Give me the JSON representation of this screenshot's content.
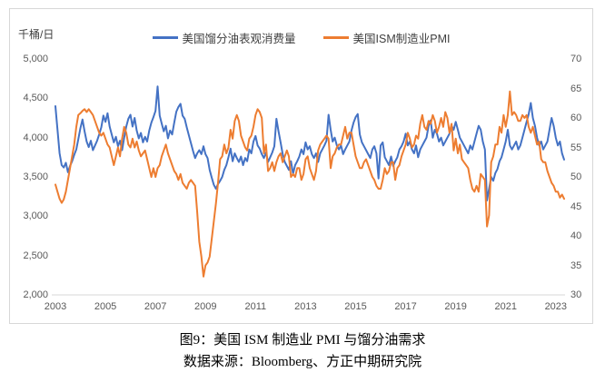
{
  "caption": {
    "title": "图9：美国 ISM 制造业 PMI 与馏分油需求",
    "source": "数据来源：Bloomberg、方正中期研究院"
  },
  "chart_data": {
    "type": "line",
    "title": "图9：美国 ISM 制造业 PMI 与馏分油需求",
    "unit_label": "千桶/日",
    "grid": "off",
    "legend_position": "top-center",
    "x_axis": {
      "start_year": 2003,
      "end": "2023-05",
      "frequency": "monthly",
      "tick_labels": [
        "2003",
        "2005",
        "2007",
        "2009",
        "2011",
        "2013",
        "2015",
        "2017",
        "2019",
        "2021",
        "2023"
      ],
      "tick_step_years": 2
    },
    "left_axis": {
      "min": 2000,
      "max": 5000,
      "step": 500,
      "tick_labels": [
        "5,000",
        "4,500",
        "4,000",
        "3,500",
        "3,000",
        "2,500",
        "2,000"
      ]
    },
    "right_axis": {
      "min": 30,
      "max": 70,
      "step": 5,
      "tick_labels": [
        "70",
        "65",
        "60",
        "55",
        "50",
        "45",
        "40",
        "35",
        "30"
      ]
    },
    "axis_color": "#d7d7d7",
    "tick_text_color": "#595959",
    "series": [
      {
        "name": "美国馏分油表观消费量",
        "axis": "left",
        "color": "#4472C4",
        "values": [
          4400,
          4100,
          3800,
          3650,
          3620,
          3680,
          3560,
          3640,
          3700,
          3780,
          3850,
          3980,
          4120,
          4230,
          4080,
          3950,
          3880,
          3960,
          3840,
          3900,
          3960,
          4040,
          4130,
          4280,
          4200,
          4310,
          4140,
          4040,
          3940,
          4010,
          3890,
          3960,
          3840,
          4000,
          4140,
          4240,
          4290,
          4140,
          4250,
          4090,
          3990,
          4060,
          3940,
          4010,
          3950,
          4090,
          4190,
          4260,
          4340,
          4650,
          4280,
          4180,
          4080,
          4150,
          3990,
          4090,
          4040,
          4190,
          4330,
          4390,
          4430,
          4280,
          4240,
          4130,
          4030,
          3930,
          3830,
          3740,
          3800,
          3840,
          3790,
          3890,
          3790,
          3740,
          3590,
          3490,
          3400,
          3350,
          3410,
          3450,
          3500,
          3590,
          3650,
          3750,
          3860,
          3700,
          3800,
          3740,
          3690,
          3760,
          3650,
          3740,
          3700,
          3850,
          3800,
          3950,
          4020,
          3900,
          3860,
          3790,
          3740,
          3810,
          3690,
          3750,
          3810,
          3890,
          4240,
          4080,
          3940,
          3790,
          3690,
          3640,
          3590,
          3700,
          3540,
          3650,
          3700,
          3760,
          3850,
          3790,
          3940,
          3850,
          3890,
          3790,
          3740,
          3800,
          3690,
          3800,
          3850,
          3900,
          3960,
          4290,
          4100,
          3950,
          4000,
          3900,
          3850,
          3900,
          3790,
          3850,
          3900,
          3950,
          4090,
          4190,
          4260,
          4300,
          4040,
          3940,
          3890,
          3840,
          3790,
          3740,
          3850,
          3890,
          3800,
          3480,
          3900,
          3940,
          3750,
          3700,
          3650,
          3760,
          3640,
          3700,
          3750,
          3850,
          3890,
          3950,
          4050,
          3900,
          3950,
          3850,
          3800,
          3900,
          3750,
          3850,
          3900,
          3950,
          4000,
          4150,
          4220,
          4000,
          4100,
          4050,
          3950,
          4000,
          3900,
          3950,
          4000,
          4050,
          4150,
          4100,
          4200,
          4100,
          4000,
          3950,
          3900,
          3850,
          3800,
          3900,
          3850,
          3950,
          4050,
          4150,
          4100,
          3950,
          3850,
          3200,
          3350,
          3500,
          3450,
          3550,
          3600,
          3700,
          3750,
          3850,
          3950,
          4100,
          3900,
          3850,
          3900,
          3950,
          3850,
          3900,
          4000,
          4100,
          4200,
          4300,
          4440,
          4250,
          4150,
          4000,
          3900,
          3950,
          3850,
          3900,
          3950,
          4100,
          4250,
          4150,
          4000,
          3900,
          3950,
          3800,
          3720
        ]
      },
      {
        "name": "美国ISM制造业PMI",
        "axis": "right",
        "color": "#ED7D31",
        "values": [
          48.7,
          47.5,
          46.3,
          45.6,
          46.2,
          47.5,
          49.5,
          51.5,
          53.5,
          55.5,
          58.5,
          60.5,
          60.8,
          61.2,
          61.5,
          61.0,
          61.5,
          61.0,
          60.5,
          59.5,
          58.5,
          57.5,
          57.0,
          57.5,
          56.5,
          55.5,
          55.0,
          53.5,
          52.0,
          53.5,
          55.0,
          53.5,
          56.5,
          58.5,
          57.5,
          55.5,
          55.0,
          56.5,
          55.0,
          56.0,
          54.5,
          53.5,
          54.0,
          54.5,
          53.0,
          51.5,
          50.0,
          51.5,
          50.0,
          51.5,
          52.0,
          53.5,
          54.5,
          55.5,
          54.0,
          53.0,
          52.0,
          51.0,
          50.5,
          49.5,
          50.5,
          49.0,
          48.5,
          48.0,
          49.0,
          49.5,
          49.0,
          48.5,
          44.0,
          39.0,
          36.5,
          33.1,
          35.0,
          35.5,
          36.5,
          39.5,
          42.5,
          45.5,
          49.0,
          53.0,
          53.5,
          55.5,
          54.0,
          55.0,
          58.0,
          56.5,
          59.5,
          60.5,
          59.5,
          57.0,
          56.0,
          55.0,
          54.5,
          56.5,
          57.0,
          58.5,
          60.5,
          61.5,
          61.0,
          60.0,
          54.0,
          55.5,
          51.0,
          51.5,
          52.5,
          51.0,
          52.5,
          53.5,
          54.0,
          52.5,
          53.5,
          54.5,
          53.5,
          50.0,
          50.5,
          50.0,
          51.5,
          51.5,
          49.5,
          50.5,
          53.0,
          53.5,
          51.5,
          50.5,
          49.5,
          51.0,
          54.5,
          55.5,
          56.0,
          56.5,
          57.0,
          56.5,
          51.5,
          53.5,
          54.0,
          55.0,
          55.5,
          55.5,
          57.0,
          58.5,
          56.5,
          57.5,
          57.5,
          55.5,
          53.5,
          52.5,
          51.5,
          51.5,
          52.5,
          53.0,
          52.0,
          51.0,
          50.0,
          49.5,
          48.5,
          48.0,
          48.0,
          49.5,
          51.5,
          50.5,
          51.0,
          52.5,
          52.5,
          49.5,
          51.5,
          52.0,
          53.5,
          54.5,
          55.5,
          57.5,
          56.5,
          55.0,
          55.5,
          57.0,
          56.5,
          59.0,
          60.5,
          58.5,
          58.0,
          59.5,
          59.0,
          60.5,
          59.5,
          57.5,
          58.5,
          60.0,
          58.5,
          61.0,
          60.0,
          57.5,
          59.0,
          54.5,
          56.5,
          54.0,
          55.5,
          53.0,
          52.5,
          52.0,
          51.5,
          49.5,
          48.0,
          47.5,
          48.5,
          47.5,
          50.5,
          50.0,
          49.5,
          41.6,
          43.5,
          52.5,
          53.5,
          55.5,
          55.5,
          58.5,
          57.5,
          60.5,
          58.5,
          60.5,
          64.5,
          60.5,
          61.0,
          60.5,
          59.5,
          59.5,
          60.5,
          60.0,
          60.5,
          58.5,
          57.5,
          58.5,
          57.0,
          55.5,
          56.0,
          53.0,
          52.5,
          52.5,
          51.0,
          50.0,
          49.0,
          48.5,
          47.5,
          47.5,
          46.5,
          47.0,
          46.3
        ]
      }
    ]
  }
}
